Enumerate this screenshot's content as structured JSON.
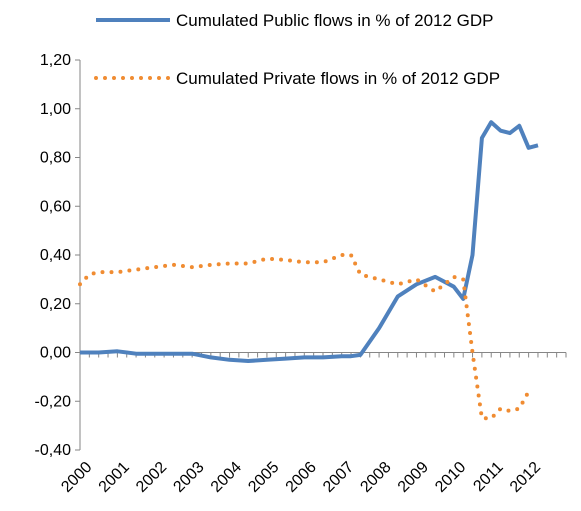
{
  "chart_data": {
    "type": "line",
    "title": "",
    "xlabel": "",
    "ylabel": "",
    "ylim": [
      -0.4,
      1.2
    ],
    "yticks": [
      1.2,
      1.0,
      0.8,
      0.6,
      0.4,
      0.2,
      0.0,
      -0.2,
      -0.4
    ],
    "ytick_labels": [
      "1,20",
      "1,00",
      "0,80",
      "0,60",
      "0,40",
      "0,20",
      "0,00",
      "-0,20",
      "-0,40"
    ],
    "x_range": [
      2000,
      2013
    ],
    "xtick_labels": [
      "2000",
      "2001",
      "2002",
      "2003",
      "2004",
      "2005",
      "2006",
      "2007",
      "2008",
      "2009",
      "2010",
      "2011",
      "2012"
    ],
    "minor_ticks_per_year": 4,
    "grid": false,
    "legend_position": "top",
    "series": [
      {
        "name": "Cumulated Public flows in % of 2012 GDP",
        "color": "#4f81bd",
        "style": "solid",
        "x": [
          2000.0,
          2000.5,
          2001.0,
          2001.5,
          2002.0,
          2002.5,
          2003.0,
          2003.5,
          2004.0,
          2004.5,
          2005.0,
          2005.5,
          2006.0,
          2006.5,
          2007.0,
          2007.25,
          2007.5,
          2008.0,
          2008.5,
          2009.0,
          2009.5,
          2010.0,
          2010.25,
          2010.5,
          2010.75,
          2011.0,
          2011.25,
          2011.5,
          2011.75,
          2012.0,
          2012.25
        ],
        "y": [
          0.0,
          0.0,
          0.005,
          -0.005,
          -0.005,
          -0.005,
          -0.005,
          -0.02,
          -0.03,
          -0.035,
          -0.03,
          -0.025,
          -0.02,
          -0.02,
          -0.015,
          -0.015,
          -0.01,
          0.1,
          0.23,
          0.28,
          0.31,
          0.27,
          0.22,
          0.4,
          0.88,
          0.945,
          0.91,
          0.9,
          0.93,
          0.84,
          0.85
        ]
      },
      {
        "name": "Cumulated Private flows in % of 2012 GDP",
        "color": "#f08c32",
        "style": "dotted",
        "x": [
          2000.0,
          2000.25,
          2000.5,
          2001.0,
          2001.5,
          2002.0,
          2002.5,
          2003.0,
          2003.5,
          2004.0,
          2004.5,
          2005.0,
          2005.5,
          2006.0,
          2006.5,
          2007.0,
          2007.25,
          2007.5,
          2008.0,
          2008.5,
          2009.0,
          2009.5,
          2010.0,
          2010.25,
          2010.5,
          2010.75,
          2011.0,
          2011.25,
          2011.5,
          2011.75,
          2012.0
        ],
        "y": [
          0.28,
          0.32,
          0.33,
          0.33,
          0.34,
          0.35,
          0.36,
          0.35,
          0.36,
          0.365,
          0.365,
          0.385,
          0.38,
          0.37,
          0.37,
          0.4,
          0.4,
          0.32,
          0.3,
          0.28,
          0.3,
          0.25,
          0.31,
          0.3,
          0.0,
          -0.27,
          -0.27,
          -0.23,
          -0.24,
          -0.23,
          -0.16
        ]
      }
    ]
  }
}
